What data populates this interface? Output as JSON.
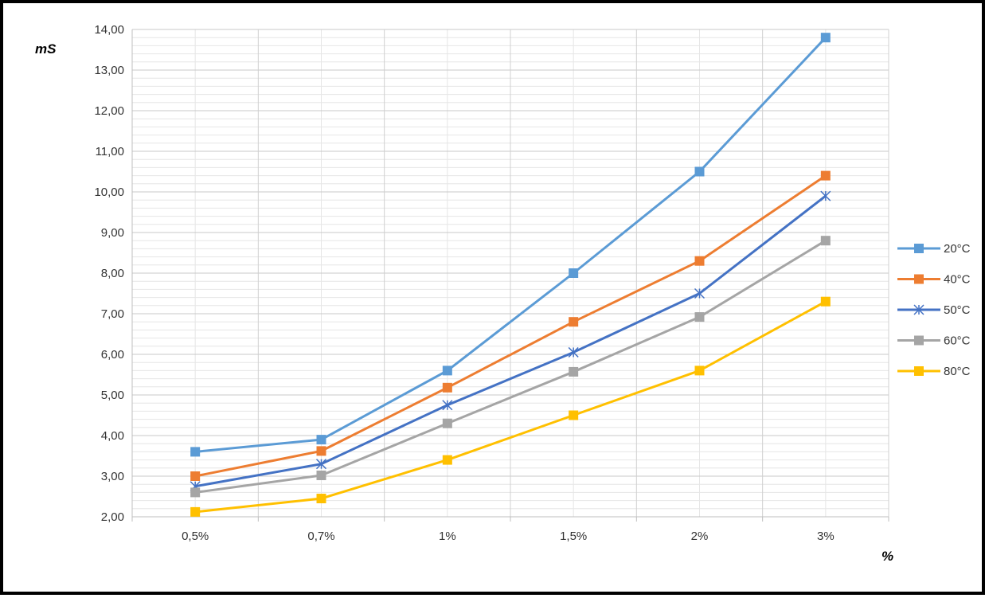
{
  "chart_data": {
    "type": "line",
    "title": "",
    "ylabel": "mS",
    "xlabel": "%",
    "categories": [
      "0,5%",
      "0,7%",
      "1%",
      "1,5%",
      "2%",
      "3%"
    ],
    "ylim": [
      2,
      14
    ],
    "y_major_step": 1,
    "y_minor_step": 0.2,
    "y_tick_labels": [
      "2,00",
      "3,00",
      "4,00",
      "5,00",
      "6,00",
      "7,00",
      "8,00",
      "9,00",
      "10,00",
      "11,00",
      "12,00",
      "13,00",
      "14,00"
    ],
    "grid": true,
    "legend_position": "right",
    "series": [
      {
        "name": "20°C",
        "color": "#5B9BD5",
        "marker": "square",
        "values": [
          3.6,
          3.9,
          5.6,
          8.0,
          10.5,
          13.8
        ]
      },
      {
        "name": "40°C",
        "color": "#ED7D31",
        "marker": "square",
        "values": [
          3.0,
          3.62,
          5.18,
          6.8,
          8.3,
          10.4
        ]
      },
      {
        "name": "50°C",
        "color": "#4472C4",
        "marker": "star",
        "values": [
          2.75,
          3.3,
          4.75,
          6.05,
          7.5,
          9.9
        ]
      },
      {
        "name": "60°C",
        "color": "#A5A5A5",
        "marker": "square",
        "values": [
          2.6,
          3.02,
          4.3,
          5.57,
          6.92,
          8.8
        ]
      },
      {
        "name": "80°C",
        "color": "#FFC000",
        "marker": "square",
        "values": [
          2.12,
          2.45,
          3.4,
          4.5,
          5.6,
          7.3
        ]
      }
    ]
  }
}
